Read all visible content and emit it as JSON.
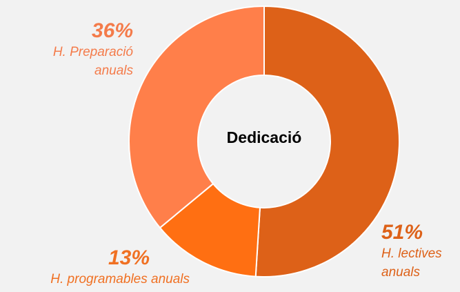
{
  "chart_data": {
    "type": "donut",
    "title": "Dedicació",
    "categories": [
      "H. lectives anuals",
      "H. programables anuals",
      "H. Preparació anuals"
    ],
    "values": [
      51,
      13,
      36
    ],
    "value_labels": [
      "51%",
      "13%",
      "36%"
    ],
    "colors": [
      "#dd6118",
      "#ff6f12",
      "#ff7f4a"
    ],
    "label_colors": [
      "#dd6118",
      "#f07022",
      "#f47b4a"
    ]
  }
}
